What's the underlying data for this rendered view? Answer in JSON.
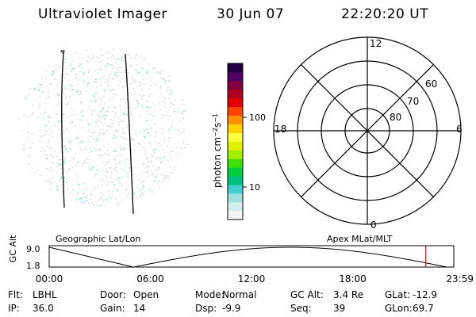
{
  "header": {
    "instrument": "Ultraviolet Imager",
    "date": "30 Jun 07",
    "time": "22:20:20 UT"
  },
  "colorbar": {
    "label": "photon cm-2s-1",
    "ticks": [
      "100",
      "10"
    ],
    "colors": [
      "#f4f4f4",
      "#d8eeee",
      "#a0e0e0",
      "#40d0d0",
      "#00c080",
      "#00d040",
      "#40e000",
      "#a0f000",
      "#e0f000",
      "#ffff40",
      "#ffd000",
      "#ff9000",
      "#ff4000",
      "#e00000",
      "#b00020",
      "#800040",
      "#500060",
      "#200040"
    ]
  },
  "polar_grid": {
    "mlt_labels": {
      "top": "12",
      "bottom": "0",
      "left": "18",
      "right": "6"
    },
    "lat_labels": [
      "60",
      "70",
      "80"
    ]
  },
  "timeline": {
    "left_label": "Geographic Lat/Lon",
    "right_label": "Apex MLat/MLT",
    "axis_title": "GC Alt",
    "y_labels": [
      "9.0",
      "1.8"
    ],
    "x_labels": [
      "00:00",
      "06:00",
      "12:00",
      "18:00",
      "23:59"
    ],
    "current_time_hours": 22.34,
    "marker_color": "#e00000"
  },
  "info": {
    "rows": [
      [
        {
          "k": "Flt:",
          "v": "LBHL"
        },
        {
          "k": "Door:",
          "v": "Open"
        },
        {
          "k": "Mode:",
          "v": "Normal"
        },
        {
          "k": "GC Alt:",
          "v": "3.4 Re"
        },
        {
          "k": "GLat:",
          "v": "-12.9"
        }
      ],
      [
        {
          "k": "IP:",
          "v": "36.0"
        },
        {
          "k": "Gain:",
          "v": "14"
        },
        {
          "k": "Dsp:",
          "v": "-9.9"
        },
        {
          "k": "Seq:",
          "v": "39"
        },
        {
          "k": "GLon:",
          "v": "69.7"
        }
      ]
    ]
  }
}
